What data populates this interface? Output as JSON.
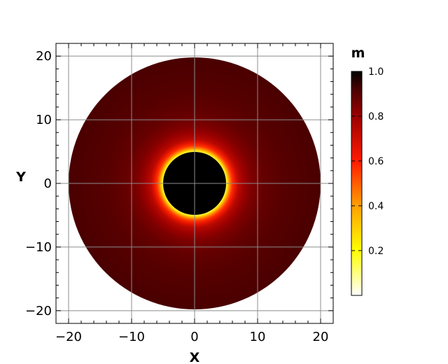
{
  "chart_data": {
    "type": "heatmap",
    "title": "",
    "xlabel": "X",
    "ylabel": "Y",
    "xlim": [
      -22,
      22
    ],
    "ylim": [
      -22,
      22
    ],
    "x_ticks": [
      -20,
      -10,
      0,
      10,
      20
    ],
    "y_ticks": [
      -20,
      -10,
      0,
      10,
      20
    ],
    "x_tick_labels": [
      "−20",
      "−10",
      "0",
      "10",
      "20"
    ],
    "y_tick_labels": [
      "−20",
      "−10",
      "0",
      "10",
      "20"
    ],
    "grid": true,
    "domain": {
      "shape": "disk",
      "center": [
        0,
        0
      ],
      "radius": 20
    },
    "hole": {
      "shape": "disk",
      "center": [
        0,
        0
      ],
      "radius": 5,
      "value": 1.0
    },
    "radial_profile": {
      "r": [
        5.0,
        5.3,
        5.6,
        6.0,
        6.5,
        7.0,
        8.0,
        9.0,
        11.0,
        14.0,
        20.0
      ],
      "m": [
        0.15,
        0.3,
        0.45,
        0.57,
        0.66,
        0.74,
        0.8,
        0.84,
        0.88,
        0.9,
        0.92
      ]
    },
    "colorbar": {
      "label": "m",
      "range": [
        0.0,
        1.0
      ],
      "ticks": [
        0.2,
        0.4,
        0.6,
        0.8,
        1.0
      ],
      "tick_labels": [
        "0.2",
        "0.4",
        "0.6",
        "0.8",
        "1.0"
      ],
      "colormap": "hot_r",
      "colormap_stops": [
        {
          "v": 0.0,
          "color": "#ffffff"
        },
        {
          "v": 0.2,
          "color": "#ffff00"
        },
        {
          "v": 0.4,
          "color": "#ffa000"
        },
        {
          "v": 0.6,
          "color": "#ff1a00"
        },
        {
          "v": 0.8,
          "color": "#9a0000"
        },
        {
          "v": 0.92,
          "color": "#4a0000"
        },
        {
          "v": 1.0,
          "color": "#000000"
        }
      ]
    }
  }
}
